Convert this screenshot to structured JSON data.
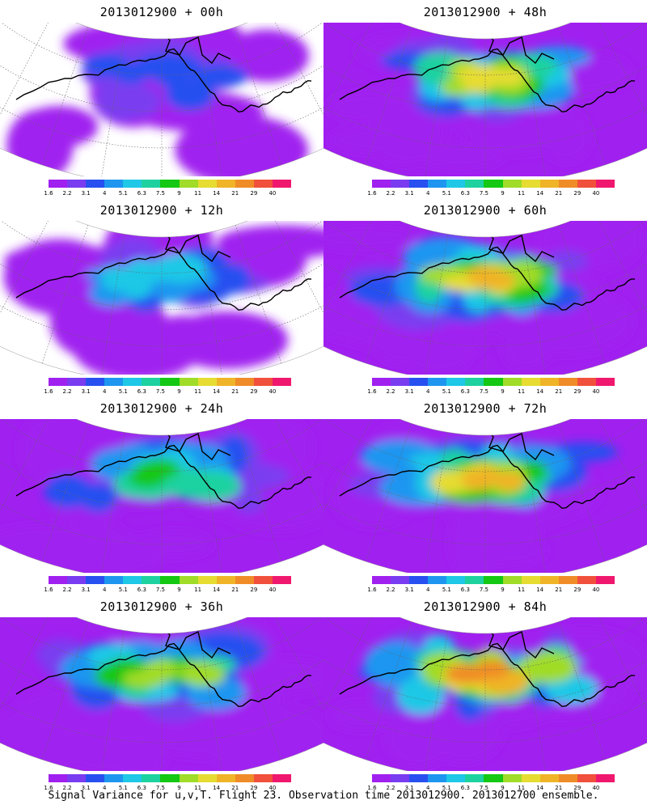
{
  "caption": "Signal Variance for u,v,T. Flight 23. Observation time 2013012900. 2013012700 ensemble.",
  "colorbar": {
    "labels": [
      "1.6",
      "2.2",
      "3.1",
      "4",
      "5.1",
      "6.3",
      "7.5",
      "9",
      "11",
      "14",
      "21",
      "29",
      "40"
    ],
    "colors": [
      "#a020f0",
      "#7a3cf0",
      "#2850f0",
      "#1e96f0",
      "#1ec8e6",
      "#1ed2a0",
      "#14c814",
      "#a0dc28",
      "#e6dc32",
      "#f0b428",
      "#f08c28",
      "#f0503c",
      "#f0186e"
    ]
  },
  "chart_data": [
    {
      "type": "heatmap",
      "title": "2013012900 + 00h",
      "lead_hours": 0,
      "intensity": 0.2
    },
    {
      "type": "heatmap",
      "title": "2013012900 + 48h",
      "lead_hours": 48,
      "intensity": 0.75
    },
    {
      "type": "heatmap",
      "title": "2013012900 + 12h",
      "lead_hours": 12,
      "intensity": 0.35
    },
    {
      "type": "heatmap",
      "title": "2013012900 + 60h",
      "lead_hours": 60,
      "intensity": 0.8
    },
    {
      "type": "heatmap",
      "title": "2013012900 + 24h",
      "lead_hours": 24,
      "intensity": 0.5
    },
    {
      "type": "heatmap",
      "title": "2013012900 + 72h",
      "lead_hours": 72,
      "intensity": 0.85
    },
    {
      "type": "heatmap",
      "title": "2013012900 + 36h",
      "lead_hours": 36,
      "intensity": 0.6
    },
    {
      "type": "heatmap",
      "title": "2013012900 + 84h",
      "lead_hours": 84,
      "intensity": 0.9
    }
  ]
}
